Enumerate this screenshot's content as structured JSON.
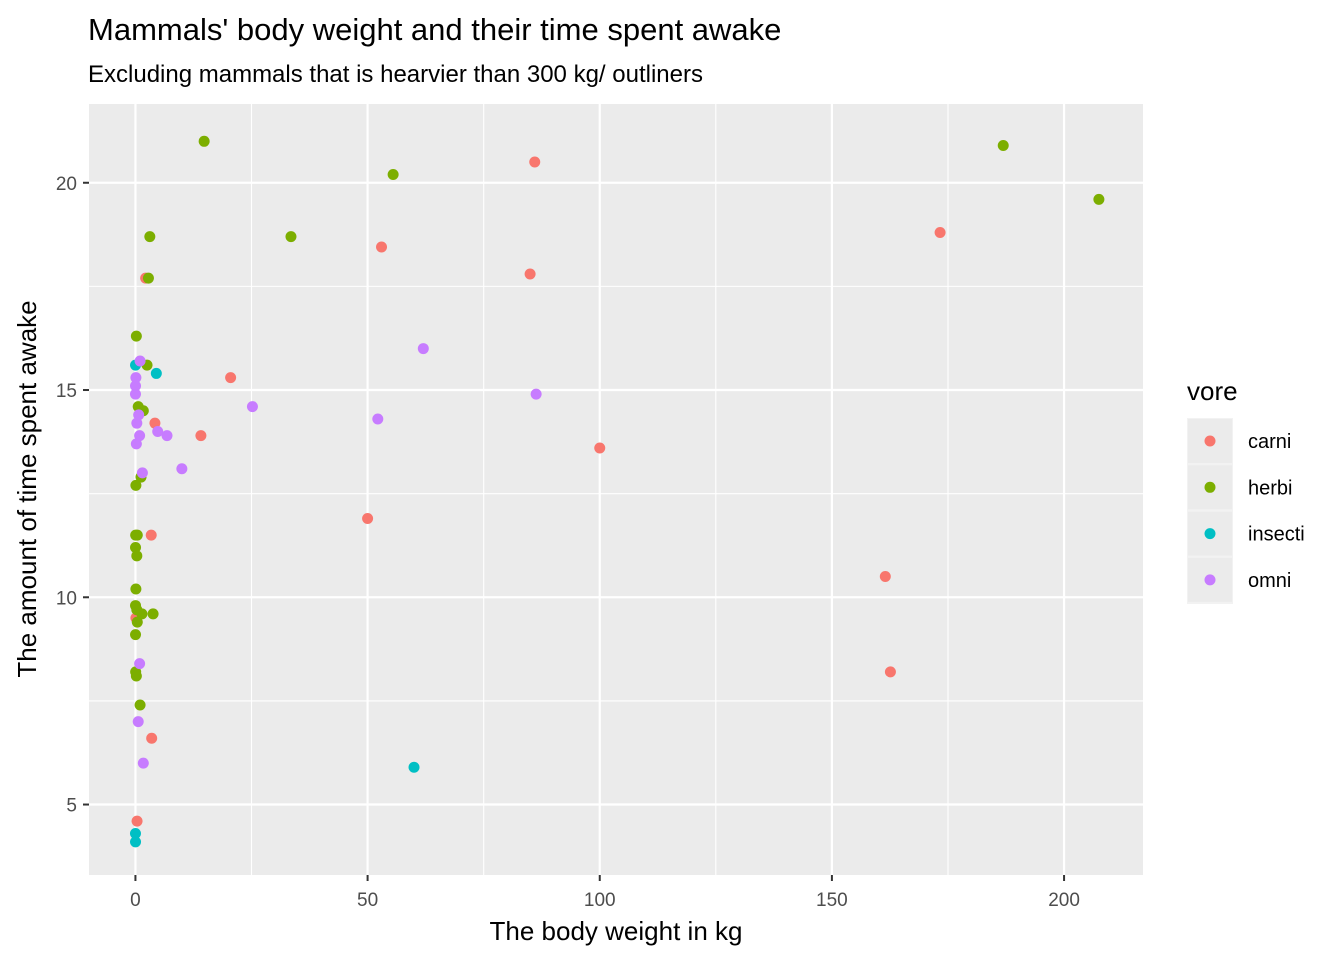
{
  "chart_data": {
    "type": "scatter",
    "title": "Mammals' body weight and their time spent awake",
    "subtitle": "Excluding mammals that is hearvier than 300 kg/ outliners",
    "xlabel": "The body weight in kg",
    "ylabel": "The amount of time spent awake",
    "xlim": [
      -10,
      217
    ],
    "ylim": [
      3.3,
      21.9
    ],
    "x_ticks": [
      0,
      50,
      100,
      150,
      200
    ],
    "x_tick_labels": [
      "0",
      "50",
      "100",
      "150",
      "200"
    ],
    "y_ticks": [
      5,
      10,
      15,
      20
    ],
    "y_tick_labels": [
      "5",
      "10",
      "15",
      "20"
    ],
    "grid": true,
    "legend": {
      "title": "vore",
      "position": "right",
      "entries": [
        {
          "name": "carni",
          "color": "#F8766D"
        },
        {
          "name": "herbi",
          "color": "#7CAE00"
        },
        {
          "name": "insecti",
          "color": "#00BFC4"
        },
        {
          "name": "omni",
          "color": "#C77CFF"
        }
      ]
    },
    "series": [
      {
        "name": "carni",
        "color": "#F8766D",
        "points": [
          [
            86,
            20.5
          ],
          [
            53,
            18.45
          ],
          [
            85,
            17.8
          ],
          [
            173.3,
            18.8
          ],
          [
            20.5,
            15.3
          ],
          [
            4.2,
            14.2
          ],
          [
            14.1,
            13.9
          ],
          [
            100,
            13.6
          ],
          [
            50,
            11.9
          ],
          [
            3.4,
            11.5
          ],
          [
            161.5,
            10.5
          ],
          [
            162.6,
            8.2
          ],
          [
            3.5,
            6.6
          ],
          [
            0.35,
            4.6
          ],
          [
            0.1,
            9.5
          ],
          [
            2.2,
            17.7
          ]
        ]
      },
      {
        "name": "herbi",
        "color": "#7CAE00",
        "points": [
          [
            14.8,
            21.0
          ],
          [
            55.5,
            20.2
          ],
          [
            186.9,
            20.9
          ],
          [
            207.5,
            19.6
          ],
          [
            3.1,
            18.7
          ],
          [
            33.5,
            18.7
          ],
          [
            2.8,
            17.7
          ],
          [
            0.2,
            16.3
          ],
          [
            2.5,
            15.6
          ],
          [
            0.6,
            14.6
          ],
          [
            1.7,
            14.5
          ],
          [
            1.2,
            12.9
          ],
          [
            0.1,
            12.7
          ],
          [
            0.05,
            11.5
          ],
          [
            0.4,
            11.5
          ],
          [
            0.02,
            11.2
          ],
          [
            0.3,
            11.0
          ],
          [
            0.1,
            10.2
          ],
          [
            0.02,
            9.8
          ],
          [
            0.3,
            9.7
          ],
          [
            1.4,
            9.6
          ],
          [
            3.8,
            9.6
          ],
          [
            0.4,
            9.4
          ],
          [
            0.02,
            9.1
          ],
          [
            0.05,
            8.2
          ],
          [
            0.2,
            8.1
          ],
          [
            1.0,
            7.4
          ]
        ]
      },
      {
        "name": "insecti",
        "color": "#00BFC4",
        "points": [
          [
            0.02,
            15.6
          ],
          [
            4.5,
            15.4
          ],
          [
            60,
            5.9
          ],
          [
            0.01,
            4.3
          ],
          [
            0.02,
            4.1
          ]
        ]
      },
      {
        "name": "omni",
        "color": "#C77CFF",
        "points": [
          [
            1.0,
            15.7
          ],
          [
            0.1,
            15.3
          ],
          [
            0.02,
            15.1
          ],
          [
            0.01,
            14.9
          ],
          [
            0.7,
            14.4
          ],
          [
            0.3,
            14.2
          ],
          [
            4.8,
            14.0
          ],
          [
            0.9,
            13.9
          ],
          [
            6.8,
            13.9
          ],
          [
            0.2,
            13.7
          ],
          [
            1.5,
            13.0
          ],
          [
            10.0,
            13.1
          ],
          [
            25.2,
            14.6
          ],
          [
            52.2,
            14.3
          ],
          [
            62,
            16.0
          ],
          [
            86.3,
            14.9
          ],
          [
            0.9,
            8.4
          ],
          [
            0.6,
            7.0
          ],
          [
            1.7,
            6.0
          ]
        ]
      }
    ]
  }
}
